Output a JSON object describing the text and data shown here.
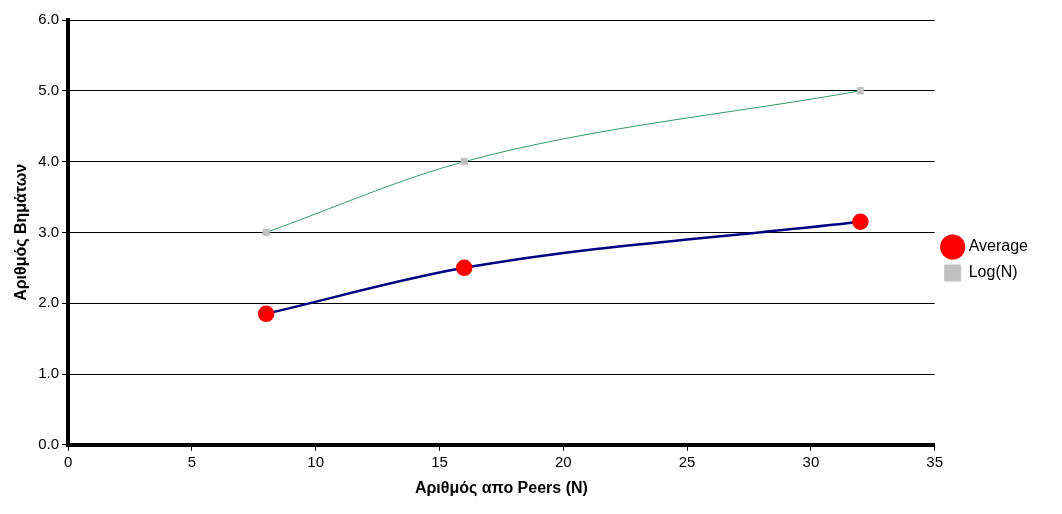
{
  "chart_data": {
    "type": "line",
    "xlabel": "Αριθμός απο Peers (N)",
    "ylabel": "Αριθμός Βημάτων",
    "x": [
      8,
      16,
      32
    ],
    "series": [
      {
        "name": "Average",
        "color": "#000080",
        "colors": [
          "#ff0000",
          "#ff0000",
          "#ff0000"
        ],
        "marker": "circle",
        "values": [
          1.85,
          2.5,
          3.15
        ]
      },
      {
        "name": "Log(N)",
        "color": "#339966",
        "colors": [
          "#c0c0c0",
          "#c0c0c0",
          "#c0c0c0"
        ],
        "marker": "square",
        "values": [
          3,
          4,
          5
        ]
      }
    ],
    "xlim": [
      0,
      35
    ],
    "xticks": [
      0,
      5,
      10,
      15,
      20,
      25,
      30,
      35
    ],
    "ylim": [
      0,
      6
    ],
    "yticks": [
      {
        "value": 0,
        "label": "0.0"
      },
      {
        "value": 1,
        "label": "1.0"
      },
      {
        "value": 2,
        "label": "2.0"
      },
      {
        "value": 3,
        "label": "3.0"
      },
      {
        "value": 4,
        "label": "4.0"
      },
      {
        "value": 5,
        "label": "5.0"
      },
      {
        "value": 6,
        "label": "6.0"
      }
    ],
    "grid": "y",
    "legend": "right"
  }
}
